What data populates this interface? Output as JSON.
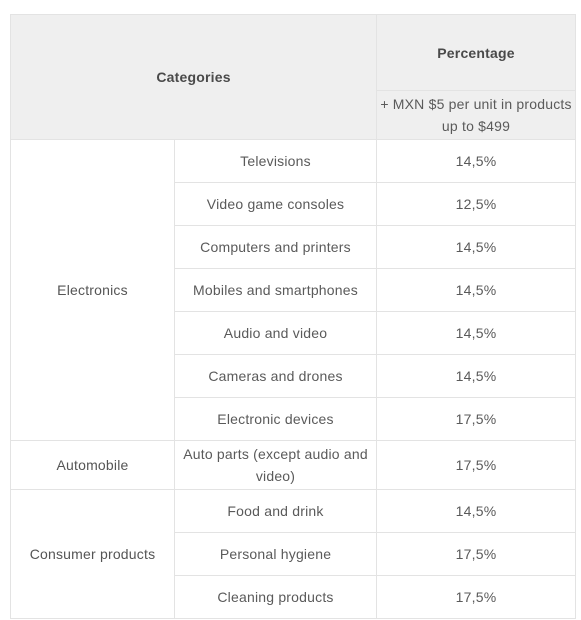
{
  "header": {
    "categories_label": "Categories",
    "percentage_label": "Percentage",
    "percentage_note": "+ MXN $5 per unit in products up to $499"
  },
  "groups": [
    {
      "name": "Electronics",
      "rows": [
        {
          "subcategory": "Televisions",
          "percentage": "14,5%"
        },
        {
          "subcategory": "Video game consoles",
          "percentage": "12,5%"
        },
        {
          "subcategory": "Computers and printers",
          "percentage": "14,5%"
        },
        {
          "subcategory": "Mobiles and smartphones",
          "percentage": "14,5%"
        },
        {
          "subcategory": "Audio and video",
          "percentage": "14,5%"
        },
        {
          "subcategory": "Cameras and drones",
          "percentage": "14,5%"
        },
        {
          "subcategory": "Electronic devices",
          "percentage": "17,5%"
        }
      ]
    },
    {
      "name": "Automobile",
      "rows": [
        {
          "subcategory": "Auto parts (except audio and video)",
          "percentage": "17,5%"
        }
      ]
    },
    {
      "name": "Consumer products",
      "rows": [
        {
          "subcategory": "Food and drink",
          "percentage": "14,5%"
        },
        {
          "subcategory": "Personal hygiene",
          "percentage": "17,5%"
        },
        {
          "subcategory": "Cleaning products",
          "percentage": "17,5%"
        }
      ]
    }
  ]
}
